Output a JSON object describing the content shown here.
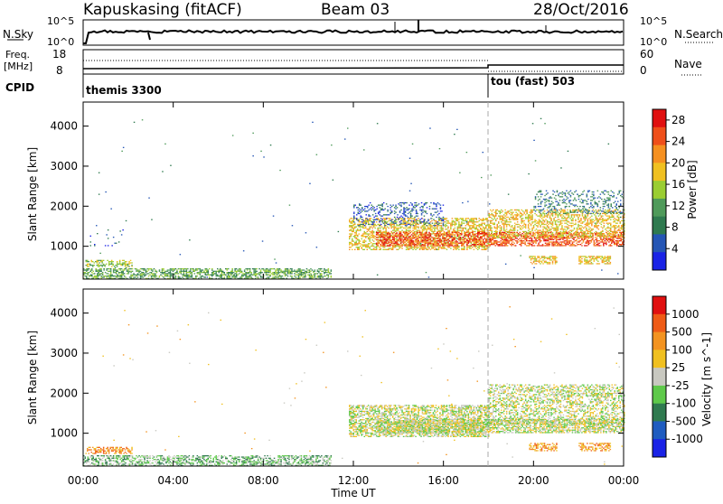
{
  "header": {
    "station": "Kapuskasing (fitACF)",
    "beam": "Beam 03",
    "date": "28/Oct/2016"
  },
  "top_panels": {
    "nsky_label": "N.Sky",
    "nsky_ticks": [
      "10^5",
      "10^0"
    ],
    "nsearch_label": "N.Search",
    "nsearch_ticks": [
      "10^5",
      "10^0"
    ],
    "freq_label": "Freq.",
    "freq_unit": "[MHz]",
    "freq_ticks": [
      "18",
      "8"
    ],
    "nave_label": "Nave",
    "nave_ticks": [
      "60",
      "0"
    ],
    "cpid_label": "CPID",
    "cpid_segments": [
      {
        "label": "themis 3300",
        "start_hour": 0
      },
      {
        "label": "tou (fast) 503",
        "start_hour": 18
      }
    ]
  },
  "colors": {
    "power_scale": [
      "#1a23e6",
      "#2556b5",
      "#2f7a4f",
      "#4f9a5a",
      "#9acd32",
      "#f0c020",
      "#f59020",
      "#ef4f1a",
      "#e01010"
    ],
    "velocity_scale": [
      "#1a23e6",
      "#1f5cc0",
      "#2f7a4f",
      "#5ec94a",
      "#c8c8c0",
      "#f0c020",
      "#f39320",
      "#ef5b16",
      "#e01010"
    ],
    "ground_scatter": "#c8c8c0"
  },
  "chart_data": [
    {
      "type": "heatmap",
      "title": "",
      "xlabel": "Time UT",
      "ylabel": "Slant Range [km]",
      "x_ticks": [
        "00:00",
        "04:00",
        "08:00",
        "12:00",
        "16:00",
        "20:00",
        "00:00"
      ],
      "xlim_hours": [
        0,
        24
      ],
      "y_ticks": [
        "1000",
        "2000",
        "3000",
        "4000"
      ],
      "ylim": [
        180,
        4600
      ],
      "colorbar": {
        "label": "Power [dB]",
        "ticks": [
          "28",
          "24",
          "20",
          "16",
          "12",
          "8",
          "4"
        ],
        "range": [
          0,
          30
        ]
      },
      "regions": [
        {
          "t0": 0.0,
          "t1": 11.0,
          "r0": 180,
          "r1": 450,
          "density": 0.55,
          "level": 3
        },
        {
          "t0": 0.1,
          "t1": 2.2,
          "r0": 480,
          "r1": 650,
          "density": 0.5,
          "level": 4
        },
        {
          "t0": 0.3,
          "t1": 1.8,
          "r0": 1000,
          "r1": 1400,
          "density": 0.08,
          "level": 1
        },
        {
          "t0": 11.8,
          "t1": 18.0,
          "r0": 900,
          "r1": 1700,
          "density": 0.55,
          "level": 5
        },
        {
          "t0": 12.0,
          "t1": 16.0,
          "r0": 1500,
          "r1": 2100,
          "density": 0.25,
          "level": 1
        },
        {
          "t0": 13.0,
          "t1": 24.0,
          "r0": 1000,
          "r1": 1350,
          "density": 0.6,
          "level": 7
        },
        {
          "t0": 18.0,
          "t1": 24.0,
          "r0": 1200,
          "r1": 1900,
          "density": 0.5,
          "level": 5
        },
        {
          "t0": 20.0,
          "t1": 24.0,
          "r0": 1800,
          "r1": 2400,
          "density": 0.25,
          "level": 2
        },
        {
          "t0": 19.8,
          "t1": 21.0,
          "r0": 550,
          "r1": 750,
          "density": 0.6,
          "level": 5
        },
        {
          "t0": 22.0,
          "t1": 23.4,
          "r0": 550,
          "r1": 750,
          "density": 0.6,
          "level": 5
        },
        {
          "t0": 0.5,
          "t1": 24.0,
          "r0": 180,
          "r1": 4200,
          "density": 0.002,
          "level": 2
        }
      ]
    },
    {
      "type": "heatmap",
      "title": "",
      "xlabel": "Time UT",
      "ylabel": "Slant Range [km]",
      "x_ticks": [
        "00:00",
        "04:00",
        "08:00",
        "12:00",
        "16:00",
        "20:00",
        "00:00"
      ],
      "xlim_hours": [
        0,
        24
      ],
      "y_ticks": [
        "1000",
        "2000",
        "3000",
        "4000"
      ],
      "ylim": [
        180,
        4600
      ],
      "colorbar": {
        "label": "Velocity [m s^-1]",
        "ticks": [
          "1000",
          "500",
          "100",
          "25",
          "-25",
          "-100",
          "-500",
          "-1000"
        ],
        "range": [
          -1000,
          1000
        ]
      },
      "regions": [
        {
          "t0": 0.0,
          "t1": 11.0,
          "r0": 180,
          "r1": 450,
          "density": 0.55,
          "level": 3
        },
        {
          "t0": 0.1,
          "t1": 2.2,
          "r0": 480,
          "r1": 650,
          "density": 0.5,
          "level": 6
        },
        {
          "t0": 11.8,
          "t1": 18.0,
          "r0": 900,
          "r1": 1700,
          "density": 0.6,
          "level": 4
        },
        {
          "t0": 13.0,
          "t1": 24.0,
          "r0": 1000,
          "r1": 1350,
          "density": 0.65,
          "level": 4
        },
        {
          "t0": 18.0,
          "t1": 24.0,
          "r0": 1200,
          "r1": 2200,
          "density": 0.45,
          "level": 4
        },
        {
          "t0": 19.8,
          "t1": 21.0,
          "r0": 550,
          "r1": 750,
          "density": 0.6,
          "level": 6
        },
        {
          "t0": 22.0,
          "t1": 23.4,
          "r0": 550,
          "r1": 750,
          "density": 0.6,
          "level": 6
        },
        {
          "t0": 0.5,
          "t1": 24.0,
          "r0": 180,
          "r1": 4200,
          "density": 0.002,
          "level": 5
        }
      ]
    }
  ]
}
